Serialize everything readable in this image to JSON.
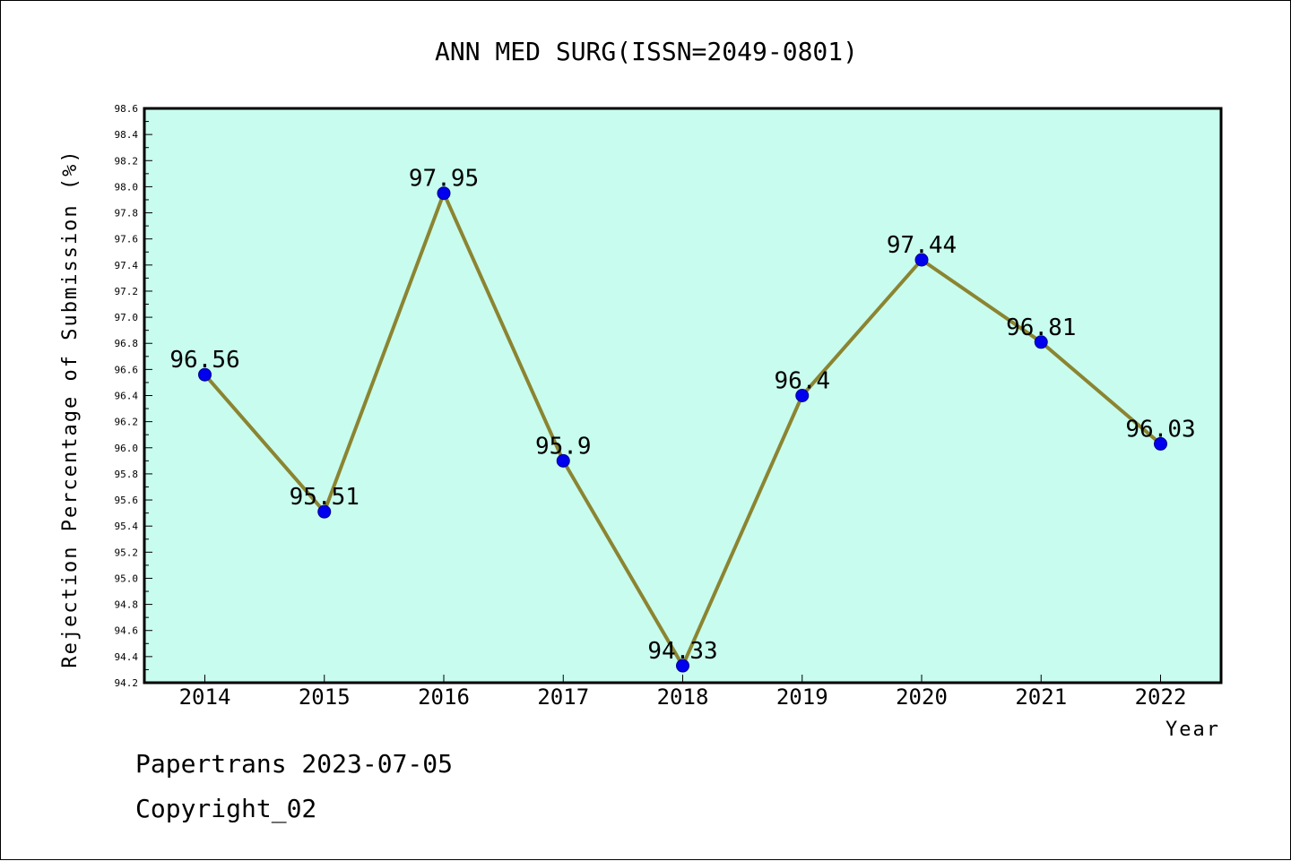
{
  "chart_data": {
    "type": "line",
    "title": "ANN MED SURG(ISSN=2049-0801)",
    "xlabel": "Year",
    "ylabel": "Rejection Percentage of Submission (%)",
    "categories": [
      "2014",
      "2015",
      "2016",
      "2017",
      "2018",
      "2019",
      "2020",
      "2021",
      "2022"
    ],
    "values": [
      96.56,
      95.51,
      97.95,
      95.9,
      94.33,
      96.4,
      97.44,
      96.81,
      96.03
    ],
    "data_labels": [
      "96.56",
      "95.51",
      "97.95",
      "95.9",
      "94.33",
      "96.4",
      "97.44",
      "96.81",
      "96.03"
    ],
    "ylim": [
      94.2,
      98.6
    ],
    "yticks": [
      "94.2",
      "94.4",
      "94.6",
      "94.8",
      "95.0",
      "95.2",
      "95.4",
      "95.6",
      "95.8",
      "96.0",
      "96.2",
      "96.4",
      "96.6",
      "96.8",
      "97.0",
      "97.2",
      "97.4",
      "97.6",
      "97.8",
      "98.0",
      "98.2",
      "98.4",
      "98.6"
    ],
    "grid": false,
    "colors": {
      "plot_background": "#c8fcee",
      "line": "#8b8431",
      "marker": "#0000ee"
    }
  },
  "footer": {
    "line1": "Papertrans 2023-07-05",
    "line2": "Copyright_02"
  }
}
